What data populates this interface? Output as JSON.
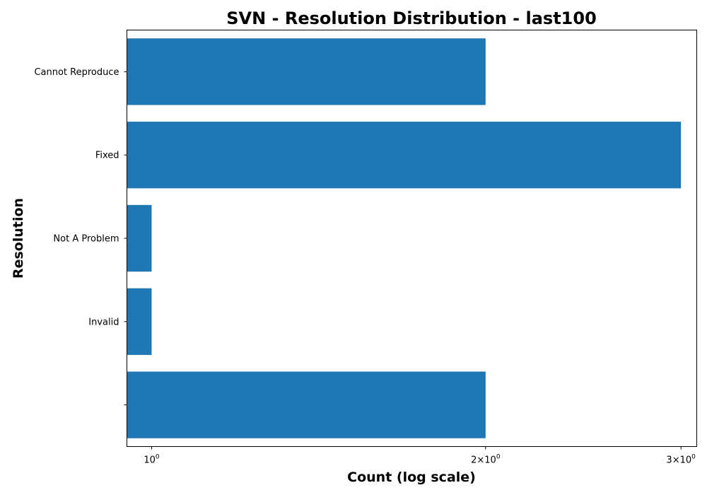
{
  "chart_data": {
    "type": "bar",
    "orientation": "horizontal",
    "title": "SVN - Resolution Distribution - last100",
    "xlabel": "Count (log scale)",
    "ylabel": "Resolution",
    "x_scale": "log",
    "xlim": [
      0.95,
      3.1
    ],
    "x_ticks": [
      {
        "value": 1,
        "mantissa": "",
        "base": "10",
        "exponent": "0"
      },
      {
        "value": 2,
        "mantissa": "2×",
        "base": "10",
        "exponent": "0"
      },
      {
        "value": 3,
        "mantissa": "3×",
        "base": "10",
        "exponent": "0"
      }
    ],
    "categories": [
      "",
      "Invalid",
      "Not A Problem",
      "Fixed",
      "Cannot Reproduce"
    ],
    "values": [
      2,
      1,
      1,
      3,
      2
    ],
    "bar_color": "#1f77b4",
    "grid": false,
    "legend": "none"
  }
}
